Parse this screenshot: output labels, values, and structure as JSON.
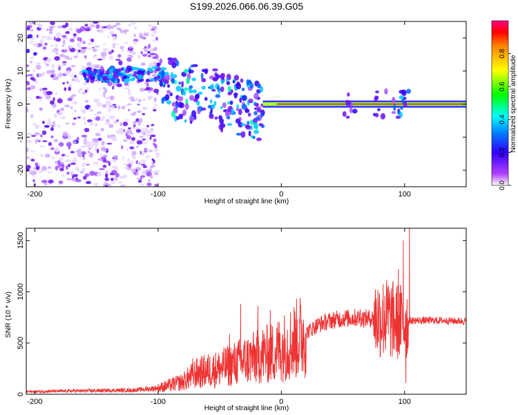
{
  "title": "S199.2026.066.06.39.G05",
  "colors": {
    "snr_line": "#ee3333",
    "frame": "#000000",
    "background": "#ffffff"
  },
  "chart_data": [
    {
      "type": "heatmap",
      "name": "spectrogram",
      "xlabel": "Height of straight line (km)",
      "ylabel": "Frequency (Hz)",
      "xlim": [
        -207,
        150
      ],
      "ylim": [
        -25,
        25
      ],
      "xticks": [
        -200,
        -100,
        0,
        100
      ],
      "yticks": [
        -20,
        -10,
        0,
        10,
        20
      ],
      "xtick_labels": [
        "-200",
        "-100",
        "0",
        "100"
      ],
      "ytick_labels": [
        "-20",
        "-10",
        "0",
        "10",
        "20"
      ],
      "colorbar": {
        "label": "Normalized spectral amplitude",
        "range": [
          0,
          1
        ],
        "ticks": [
          0.0,
          0.2,
          0.4,
          0.6,
          0.8
        ],
        "tick_labels": [
          "0.0",
          "0.2",
          "0.4",
          "0.6",
          "0.8"
        ]
      },
      "features": [
        {
          "label": "main tone",
          "x_from": -15,
          "x_to": 150,
          "freq_hz": 0,
          "amplitude": 0.95
        },
        {
          "label": "upper band",
          "x_from": -160,
          "x_to": -95,
          "freq_hz": 9,
          "amplitude": 0.45
        },
        {
          "label": "scatter",
          "x_from": -207,
          "x_to": -100,
          "freq_hz_range": [
            -25,
            25
          ],
          "amplitude": 0.2
        }
      ]
    },
    {
      "type": "line",
      "name": "snr",
      "xlabel": "Height of straight line (km)",
      "ylabel": "SNR (10 * v/v)",
      "xlim": [
        -207,
        150
      ],
      "ylim": [
        0,
        1620
      ],
      "xticks": [
        -200,
        -100,
        0,
        100
      ],
      "yticks": [
        0,
        500,
        1000,
        1500
      ],
      "xtick_labels": [
        "-200",
        "-100",
        "0",
        "100"
      ],
      "ytick_labels": [
        "0",
        "500",
        "1000",
        "1500"
      ],
      "series": [
        {
          "name": "SNR",
          "x": [
            -207,
            -180,
            -150,
            -120,
            -100,
            -90,
            -80,
            -75,
            -70,
            -60,
            -50,
            -40,
            -30,
            -20,
            -15,
            -10,
            -5,
            0,
            5,
            10,
            20,
            30,
            40,
            50,
            60,
            70,
            80,
            85,
            90,
            95,
            100,
            102,
            105,
            110,
            120,
            130,
            140,
            150
          ],
          "y": [
            25,
            30,
            35,
            40,
            60,
            90,
            120,
            160,
            200,
            230,
            250,
            290,
            330,
            360,
            390,
            390,
            420,
            450,
            480,
            520,
            600,
            680,
            720,
            740,
            745,
            740,
            745,
            740,
            720,
            710,
            700,
            700,
            720,
            720,
            720,
            720,
            715,
            715
          ],
          "spikes": [
            {
              "x": -72,
              "y": 350
            },
            {
              "x": -52,
              "y": 330
            },
            {
              "x": -42,
              "y": 590
            },
            {
              "x": -33,
              "y": 880
            },
            {
              "x": -19,
              "y": 860
            },
            {
              "x": -9,
              "y": 820
            },
            {
              "x": 12,
              "y": 640
            },
            {
              "x": 64,
              "y": 830
            },
            {
              "x": 84,
              "y": 960
            },
            {
              "x": 87,
              "y": 1060
            },
            {
              "x": 95,
              "y": 1220
            },
            {
              "x": 99,
              "y": 1500
            },
            {
              "x": 104,
              "y": 1620
            },
            {
              "x": 101,
              "y": 110
            }
          ]
        }
      ]
    }
  ]
}
